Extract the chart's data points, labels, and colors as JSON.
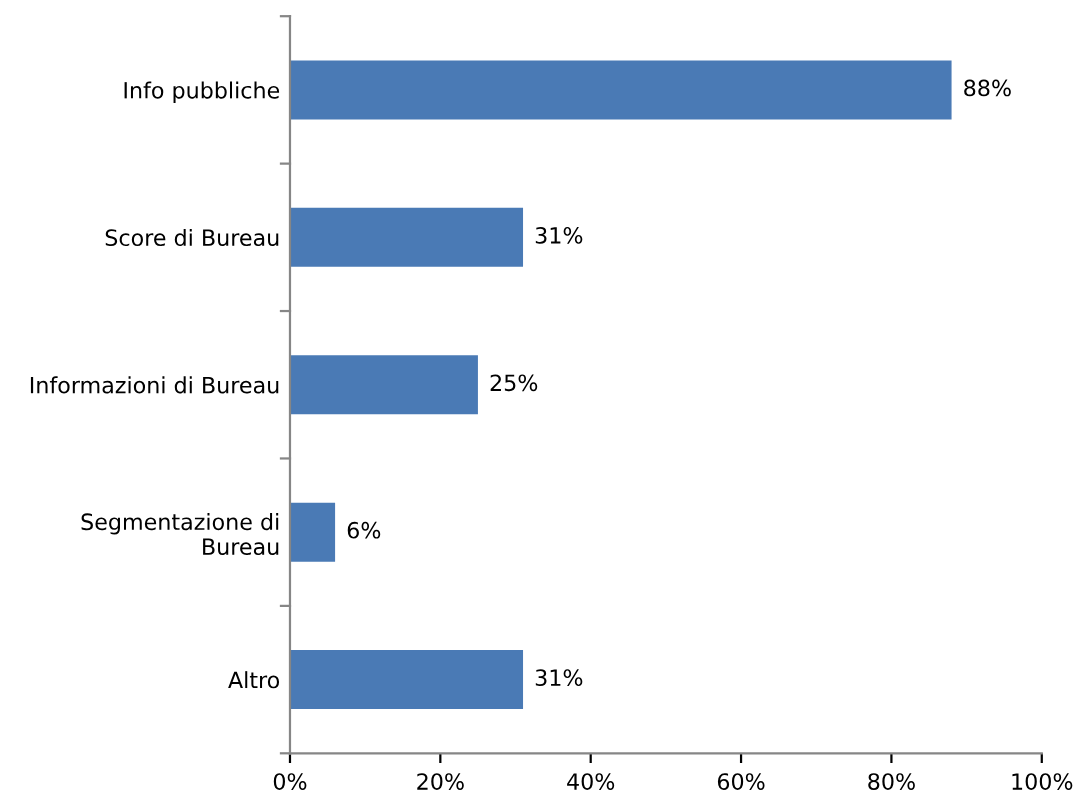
{
  "chart_data": {
    "type": "bar",
    "orientation": "horizontal",
    "categories": [
      "Info pubbliche",
      "Score di Bureau",
      "Informazioni di Bureau",
      "Segmentazione di Bureau",
      "Altro"
    ],
    "values": [
      88,
      31,
      25,
      6,
      31
    ],
    "value_labels": [
      "88%",
      "31%",
      "25%",
      "6%",
      "31%"
    ],
    "color": "#4a7ab5",
    "xlim": [
      0,
      100
    ],
    "xticks": [
      {
        "value": 0,
        "label": "0%"
      },
      {
        "value": 20,
        "label": "20%"
      },
      {
        "value": 40,
        "label": "40%"
      },
      {
        "value": 60,
        "label": "60%"
      },
      {
        "value": 80,
        "label": "80%"
      },
      {
        "value": 100,
        "label": "100%"
      }
    ],
    "grid": false
  }
}
